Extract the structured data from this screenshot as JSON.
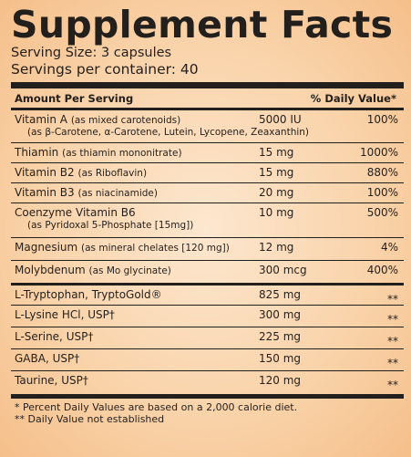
{
  "title": "Supplement Facts",
  "serving_size": "Serving Size: 3 capsules",
  "servings_per_container": "Servings per container: 40",
  "header": {
    "amount_label": "Amount Per Serving",
    "dv_label": "% Daily Value*"
  },
  "rows": [
    {
      "name": "Vitamin A",
      "detail": "(as mixed carotenoids)",
      "sub": "(as β-Carotene, α-Carotene, Lutein, Lycopene, Zeaxanthin)",
      "amount": "5000 IU",
      "dv": "100%"
    },
    {
      "name": "Thiamin",
      "detail": "(as thiamin mononitrate)",
      "sub": "",
      "amount": "15 mg",
      "dv": "1000%"
    },
    {
      "name": "Vitamin B2",
      "detail": "(as Riboflavin)",
      "sub": "",
      "amount": "15 mg",
      "dv": "880%"
    },
    {
      "name": "Vitamin B3",
      "detail": "(as niacinamide)",
      "sub": "",
      "amount": "20 mg",
      "dv": "100%"
    },
    {
      "name": "Coenzyme Vitamin B6",
      "detail": "",
      "sub": "(as Pyridoxal 5-Phosphate [15mg])",
      "amount": "10 mg",
      "dv": "500%"
    },
    {
      "name": "Magnesium",
      "detail": "(as mineral chelates [120 mg])",
      "sub": "",
      "amount": "12 mg",
      "dv": "4%"
    },
    {
      "name": "Molybdenum",
      "detail": "(as Mo glycinate)",
      "sub": "",
      "amount": "300 mcg",
      "dv": "400%"
    },
    {
      "name": "L-Tryptophan, TryptoGold®",
      "detail": "",
      "sub": "",
      "amount": "825 mg",
      "dv": "**"
    },
    {
      "name": "L-Lysine HCl, USP†",
      "detail": "",
      "sub": "",
      "amount": "300 mg",
      "dv": "**"
    },
    {
      "name": "L-Serine, USP†",
      "detail": "",
      "sub": "",
      "amount": "225 mg",
      "dv": "**"
    },
    {
      "name": "GABA, USP†",
      "detail": "",
      "sub": "",
      "amount": "150 mg",
      "dv": "**"
    },
    {
      "name": "Taurine, USP†",
      "detail": "",
      "sub": "",
      "amount": "120 mg",
      "dv": "**"
    }
  ],
  "footnotes": [
    "* Percent Daily Values are based on a 2,000 calorie diet.",
    "** Daily Value not established"
  ]
}
